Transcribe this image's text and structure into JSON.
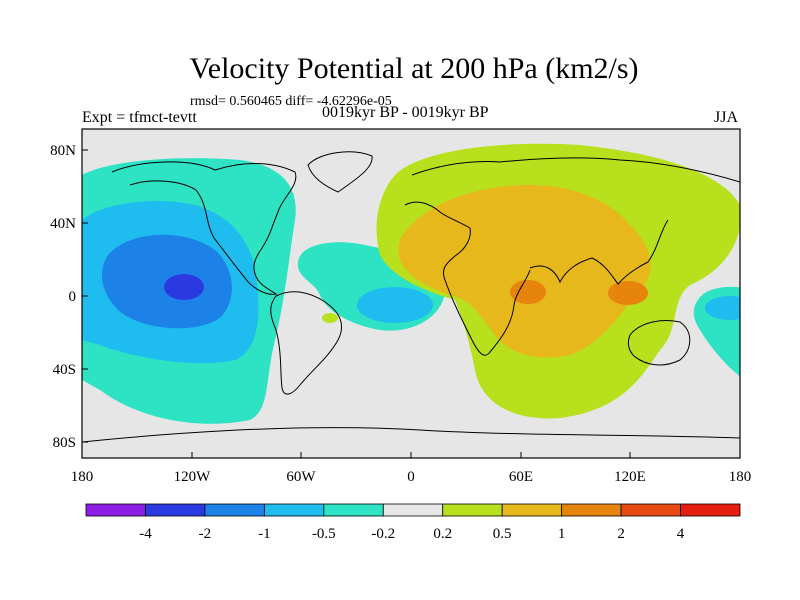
{
  "title": "Velocity Potential at 200 hPa (km2/s)",
  "stats": "rmsd= 0.560465 diff= -4.62296e-05",
  "expt": "Expt = tfmct-tevtt",
  "period": "0019kyr BP - 0019kyr BP",
  "season": "JJA",
  "map": {
    "x_ticks": [
      "180",
      "120W",
      "60W",
      "0",
      "60E",
      "120E",
      "180"
    ],
    "y_ticks": [
      "80N",
      "40N",
      "0",
      "40S",
      "80S"
    ],
    "lon_range": [
      -180,
      180
    ],
    "lat_range": [
      -90,
      90
    ]
  },
  "colorbar": {
    "labels": [
      "-4",
      "-2",
      "-1",
      "-0.5",
      "-0.2",
      "0.2",
      "0.5",
      "1",
      "2",
      "4"
    ],
    "colors": [
      "#8c1ee6",
      "#2a3ae0",
      "#1c82e8",
      "#1fbcf0",
      "#2de3c4",
      "#e6e6e6",
      "#b8e01c",
      "#e6b81c",
      "#e6840e",
      "#e64a10",
      "#e61e10"
    ]
  },
  "colors": {
    "background": "#e6e6e6",
    "coast": "#000000"
  }
}
